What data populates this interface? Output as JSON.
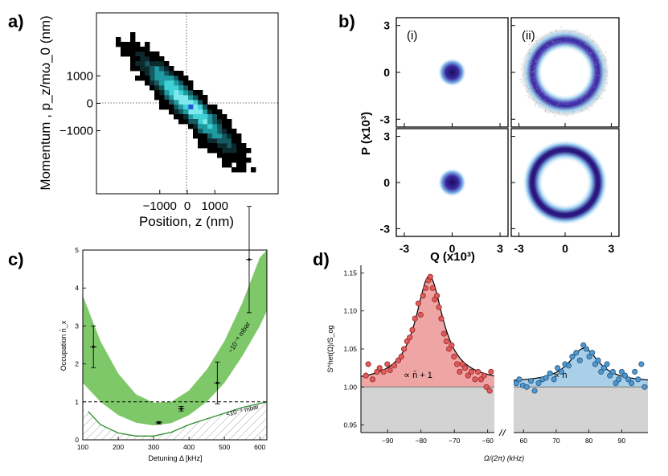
{
  "panels": {
    "a": {
      "label": "a)",
      "chart_data": {
        "type": "heatmap",
        "title": "",
        "xlabel": "Position, z (nm)",
        "ylabel": "Momentum , p_z/mω_0 (nm)",
        "xlim": [
          -3300,
          3300
        ],
        "ylim": [
          -3300,
          3300
        ],
        "xticks": [
          -1000,
          0,
          1000
        ],
        "xtick_labels": [
          "−1000",
          "0",
          "1000"
        ],
        "yticks": [
          1000,
          0,
          -1000
        ],
        "ytick_labels": [
          "1000",
          "0",
          "−1000"
        ],
        "description": "2D histogram of phase-space points elongated along anti-diagonal, correlation negative"
      }
    },
    "b": {
      "label": "b)",
      "chart_data": {
        "type": "heatmap",
        "xlabel": "Q (x10³)",
        "ylabel": "P (x10³)",
        "xlim": [
          -3.5,
          3.5
        ],
        "ylim": [
          -3.5,
          3.5
        ],
        "xticks": [
          -3,
          0,
          3
        ],
        "yticks": [
          3,
          0,
          -3
        ],
        "subpanels": [
          {
            "row": "top",
            "col": "left",
            "tag": "(i)",
            "shape": "point",
            "radius": 0.3
          },
          {
            "row": "top",
            "col": "right",
            "tag": "(ii)",
            "shape": "ring",
            "radius": 2.0
          },
          {
            "row": "bottom",
            "col": "left",
            "tag": "",
            "shape": "point",
            "radius": 0.3
          },
          {
            "row": "bottom",
            "col": "right",
            "tag": "",
            "shape": "ring",
            "radius": 2.0
          }
        ]
      }
    },
    "c": {
      "label": "c)",
      "chart_data": {
        "type": "scatter",
        "xlabel": "Detuning Δ [kHz]",
        "ylabel": "Occupation n̄_x",
        "xlim": [
          100,
          620
        ],
        "ylim": [
          0,
          5
        ],
        "xticks": [
          100,
          200,
          300,
          400,
          500,
          600
        ],
        "yticks": [
          0,
          1,
          2,
          3,
          4,
          5
        ],
        "points": [
          {
            "x": 130,
            "y": 2.45,
            "yerr": 0.55
          },
          {
            "x": 315,
            "y": 0.45,
            "yerr": 0.03
          },
          {
            "x": 378,
            "y": 0.82,
            "yerr": 0.06
          },
          {
            "x": 480,
            "y": 1.5,
            "yerr": 0.55
          },
          {
            "x": 570,
            "y": 4.75,
            "yerr": 1.4
          }
        ],
        "dashed_line_y": 1,
        "band_upper": [
          [
            100,
            3.8
          ],
          [
            150,
            2.6
          ],
          [
            200,
            1.75
          ],
          [
            250,
            1.2
          ],
          [
            300,
            0.98
          ],
          [
            350,
            1.0
          ],
          [
            400,
            1.3
          ],
          [
            450,
            1.85
          ],
          [
            500,
            2.6
          ],
          [
            550,
            3.6
          ],
          [
            600,
            4.8
          ],
          [
            620,
            5.0
          ]
        ],
        "band_lower": [
          [
            100,
            1.5
          ],
          [
            150,
            1.0
          ],
          [
            200,
            0.65
          ],
          [
            250,
            0.45
          ],
          [
            300,
            0.38
          ],
          [
            350,
            0.44
          ],
          [
            400,
            0.65
          ],
          [
            450,
            1.0
          ],
          [
            500,
            1.5
          ],
          [
            550,
            2.2
          ],
          [
            600,
            3.0
          ],
          [
            620,
            3.4
          ]
        ],
        "lower_bound": [
          [
            115,
            0.75
          ],
          [
            150,
            0.4
          ],
          [
            200,
            0.18
          ],
          [
            250,
            0.1
          ],
          [
            300,
            0.1
          ],
          [
            350,
            0.2
          ],
          [
            400,
            0.4
          ],
          [
            450,
            0.55
          ],
          [
            500,
            0.7
          ],
          [
            550,
            0.85
          ],
          [
            620,
            1.0
          ]
        ],
        "annotations": {
          "band": "~10⁻⁸ mbar",
          "line": "<10⁻⁹ mbar"
        }
      }
    },
    "d": {
      "label": "d)",
      "chart_data": {
        "type": "scatter",
        "xlabel": "Ω/(2π) (kHz)",
        "ylabel": "S^het(Ω)/S_og",
        "ylim": [
          0.94,
          1.16
        ],
        "yticks": [
          0.95,
          1.0,
          1.05,
          1.1,
          1.15
        ],
        "ytick_labels": [
          "0.95",
          "1.00",
          "1.05",
          "1.10",
          "1.15"
        ],
        "left": {
          "xlim": [
            -98,
            -58
          ],
          "xticks": [
            -90,
            -80,
            -70,
            -60
          ],
          "annotation": "∝ n̄ + 1",
          "fit_center": -77.5,
          "fit_width": 5.0,
          "fit_amplitude": 0.14,
          "points": [
            [
              -96.5,
              1.015
            ],
            [
              -95.8,
              1.03
            ],
            [
              -94.5,
              1.01
            ],
            [
              -93.2,
              1.02
            ],
            [
              -92.4,
              1.025
            ],
            [
              -91.2,
              1.02
            ],
            [
              -90.1,
              1.03
            ],
            [
              -89.3,
              1.022
            ],
            [
              -88.0,
              1.028
            ],
            [
              -86.8,
              1.035
            ],
            [
              -85.9,
              1.04
            ],
            [
              -85.1,
              1.05
            ],
            [
              -84.2,
              1.06
            ],
            [
              -83.4,
              1.065
            ],
            [
              -82.6,
              1.075
            ],
            [
              -81.8,
              1.09
            ],
            [
              -80.8,
              1.11
            ],
            [
              -80.1,
              1.095
            ],
            [
              -79.4,
              1.12
            ],
            [
              -78.6,
              1.13
            ],
            [
              -77.8,
              1.14
            ],
            [
              -77.2,
              1.145
            ],
            [
              -76.5,
              1.13
            ],
            [
              -75.9,
              1.115
            ],
            [
              -75.2,
              1.12
            ],
            [
              -74.6,
              1.105
            ],
            [
              -73.9,
              1.09
            ],
            [
              -73.1,
              1.07
            ],
            [
              -72.4,
              1.06
            ],
            [
              -71.6,
              1.05
            ],
            [
              -70.8,
              1.055
            ],
            [
              -70.1,
              1.04
            ],
            [
              -69.2,
              1.03
            ],
            [
              -68.4,
              1.02
            ],
            [
              -67.6,
              1.03
            ],
            [
              -66.8,
              1.025
            ],
            [
              -65.9,
              1.015
            ],
            [
              -64.9,
              1.02
            ],
            [
              -63.8,
              1.01
            ],
            [
              -62.9,
              1.02
            ],
            [
              -62.0,
              1.01
            ],
            [
              -61.1,
              1.015
            ],
            [
              -60.4,
              1.0
            ],
            [
              -59.4,
              0.995
            ],
            [
              -59.0,
              1.02
            ]
          ]
        },
        "right": {
          "xlim": [
            57,
            98
          ],
          "xticks": [
            60,
            70,
            80,
            90
          ],
          "annotation": "∝ n",
          "fit_center": 78.5,
          "fit_width": 5.5,
          "fit_amplitude": 0.045,
          "points": [
            [
              57.8,
              1.005
            ],
            [
              58.7,
              1.01
            ],
            [
              59.8,
              1.002
            ],
            [
              61.0,
              1.0
            ],
            [
              62.3,
              1.008
            ],
            [
              63.4,
              0.995
            ],
            [
              64.6,
              1.005
            ],
            [
              65.8,
              1.01
            ],
            [
              66.9,
              1.012
            ],
            [
              68.1,
              1.018
            ],
            [
              69.3,
              1.01
            ],
            [
              70.4,
              1.025
            ],
            [
              71.6,
              1.02
            ],
            [
              72.7,
              1.03
            ],
            [
              73.8,
              1.028
            ],
            [
              74.9,
              1.04
            ],
            [
              76.1,
              1.045
            ],
            [
              77.2,
              1.035
            ],
            [
              78.3,
              1.055
            ],
            [
              79.2,
              1.05
            ],
            [
              80.1,
              1.04
            ],
            [
              81.0,
              1.045
            ],
            [
              81.9,
              1.03
            ],
            [
              82.8,
              1.035
            ],
            [
              83.7,
              1.02
            ],
            [
              84.6,
              1.025
            ],
            [
              85.5,
              1.03
            ],
            [
              86.4,
              1.015
            ],
            [
              87.3,
              1.02
            ],
            [
              88.2,
              1.005
            ],
            [
              89.1,
              1.01
            ],
            [
              90.0,
              1.02
            ],
            [
              91.0,
              1.015
            ],
            [
              92.0,
              1.01
            ],
            [
              93.0,
              1.005
            ],
            [
              94.0,
              1.02
            ],
            [
              95.0,
              1.01
            ],
            [
              96.0,
              1.03
            ],
            [
              97.0,
              1.0
            ]
          ]
        }
      }
    }
  }
}
